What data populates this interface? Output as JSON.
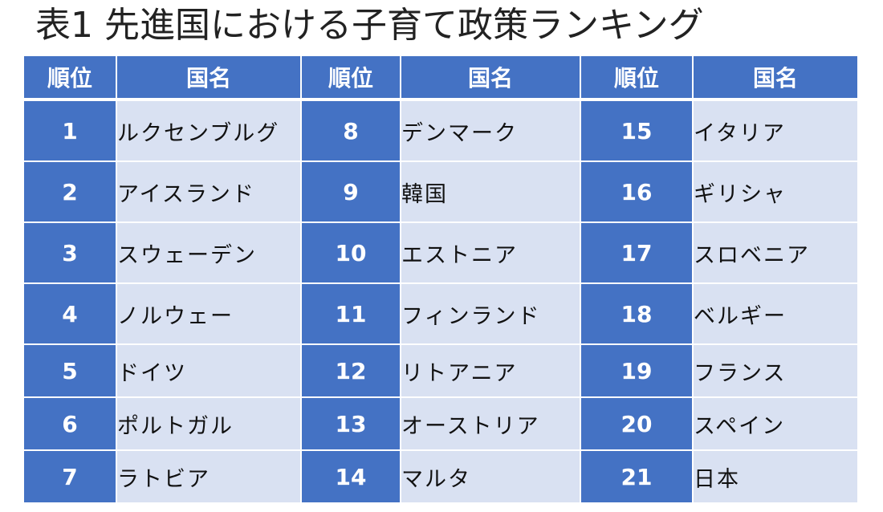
{
  "title": "表1 先進国における子育て政策ランキング",
  "table": {
    "headers": [
      "順位",
      "国名",
      "順位",
      "国名",
      "順位",
      "国名"
    ],
    "rows": [
      [
        {
          "rank": "1",
          "country": "ルクセンブルグ"
        },
        {
          "rank": "8",
          "country": "デンマーク"
        },
        {
          "rank": "15",
          "country": "イタリア"
        }
      ],
      [
        {
          "rank": "2",
          "country": "アイスランド"
        },
        {
          "rank": "9",
          "country": "韓国"
        },
        {
          "rank": "16",
          "country": "ギリシャ"
        }
      ],
      [
        {
          "rank": "3",
          "country": "スウェーデン"
        },
        {
          "rank": "10",
          "country": "エストニア"
        },
        {
          "rank": "17",
          "country": "スロベニア"
        }
      ],
      [
        {
          "rank": "4",
          "country": "ノルウェー"
        },
        {
          "rank": "11",
          "country": "フィンランド"
        },
        {
          "rank": "18",
          "country": "ベルギー"
        }
      ],
      [
        {
          "rank": "5",
          "country": "ドイツ"
        },
        {
          "rank": "12",
          "country": "リトアニア"
        },
        {
          "rank": "19",
          "country": "フランス"
        }
      ],
      [
        {
          "rank": "6",
          "country": "ポルトガル"
        },
        {
          "rank": "13",
          "country": "オーストリア"
        },
        {
          "rank": "20",
          "country": "スペイン"
        }
      ],
      [
        {
          "rank": "7",
          "country": "ラトビア"
        },
        {
          "rank": "14",
          "country": "マルタ"
        },
        {
          "rank": "21",
          "country": "日本"
        }
      ]
    ]
  }
}
